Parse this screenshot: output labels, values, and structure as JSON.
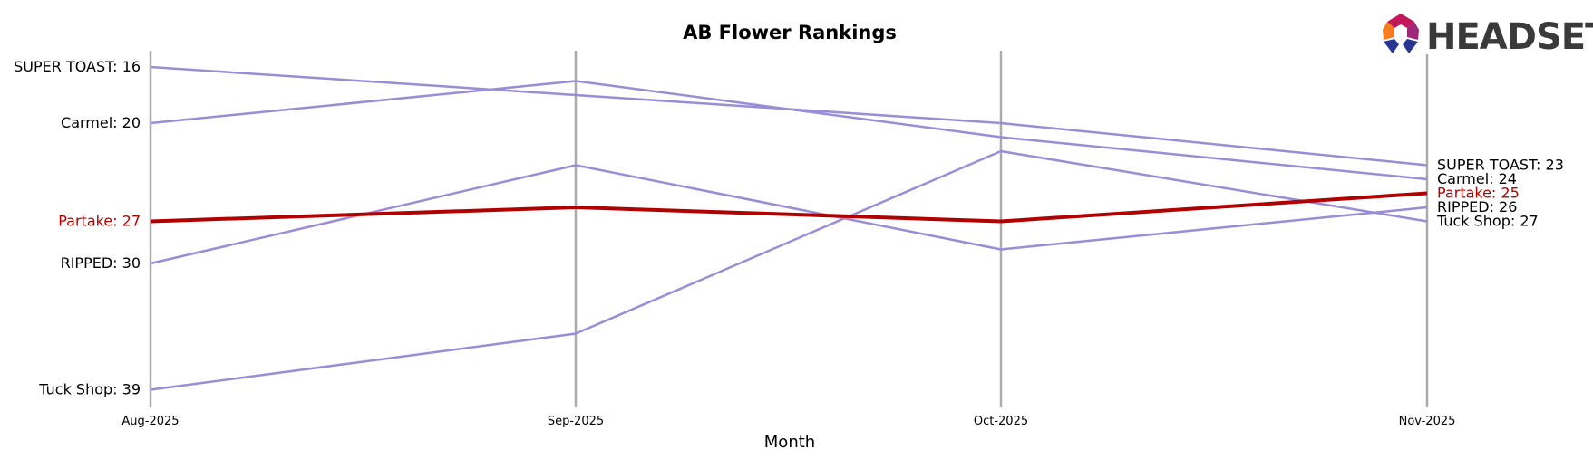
{
  "chart_data": {
    "type": "line",
    "title": "AB Flower Rankings",
    "xlabel": "Month",
    "ylabel": "",
    "categories": [
      "Aug-2025",
      "Sep-2025",
      "Oct-2025",
      "Nov-2025"
    ],
    "y_inverted": true,
    "ylim": [
      15,
      40
    ],
    "grid": "vertical lines at each month",
    "highlight_series": "Partake",
    "colors": {
      "highlight": "#b20000",
      "other": "#9a8cd6",
      "gridline": "#aaaaaa"
    },
    "series": [
      {
        "name": "SUPER TOAST",
        "values": [
          16,
          18,
          20,
          23
        ],
        "start_label": "SUPER TOAST: 16",
        "end_label": "SUPER TOAST: 23"
      },
      {
        "name": "Carmel",
        "values": [
          20,
          17,
          21,
          24
        ],
        "start_label": "Carmel: 20",
        "end_label": "Carmel: 24"
      },
      {
        "name": "Partake",
        "values": [
          27,
          26,
          27,
          25
        ],
        "start_label": "Partake: 27",
        "end_label": "Partake: 25"
      },
      {
        "name": "RIPPED",
        "values": [
          30,
          23,
          29,
          26
        ],
        "start_label": "RIPPED: 30",
        "end_label": "RIPPED: 26"
      },
      {
        "name": "Tuck Shop",
        "values": [
          39,
          35,
          22,
          27
        ],
        "start_label": "Tuck Shop: 39",
        "end_label": "Tuck Shop: 27"
      }
    ]
  },
  "logo": {
    "text": "HEADSET",
    "icon": "headset-hexagon-logo-icon"
  }
}
